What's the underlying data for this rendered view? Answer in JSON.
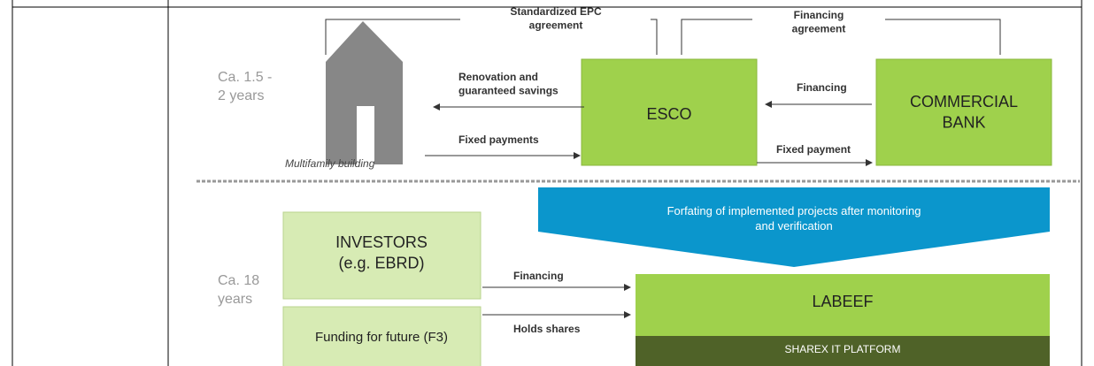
{
  "diagram": {
    "periods": [
      "Ca. 1.5 -\n2 years",
      "Ca. 18\nyears"
    ],
    "building": "Multifamily building",
    "agreements": {
      "epc": "Standardized EPC\nagreement",
      "financing": "Financing\nagreement"
    },
    "nodes": {
      "esco": "ESCO",
      "bank": "COMMERCIAL\nBANK",
      "investors": "INVESTORS\n(e.g. EBRD)",
      "f3": "Funding for future (F3)",
      "labeef": "LABEEF",
      "sharex": "SHAREX IT PLATFORM"
    },
    "flows": {
      "renovation": "Renovation and\nguaranteed savings",
      "fixed_payments": "Fixed payments",
      "financing_bank": "Financing",
      "fixed_payment": "Fixed payment",
      "financing_inv": "Financing",
      "holds_shares": "Holds shares"
    },
    "forfaiting": "Forfating of implemented projects after monitoring\nand verification"
  }
}
